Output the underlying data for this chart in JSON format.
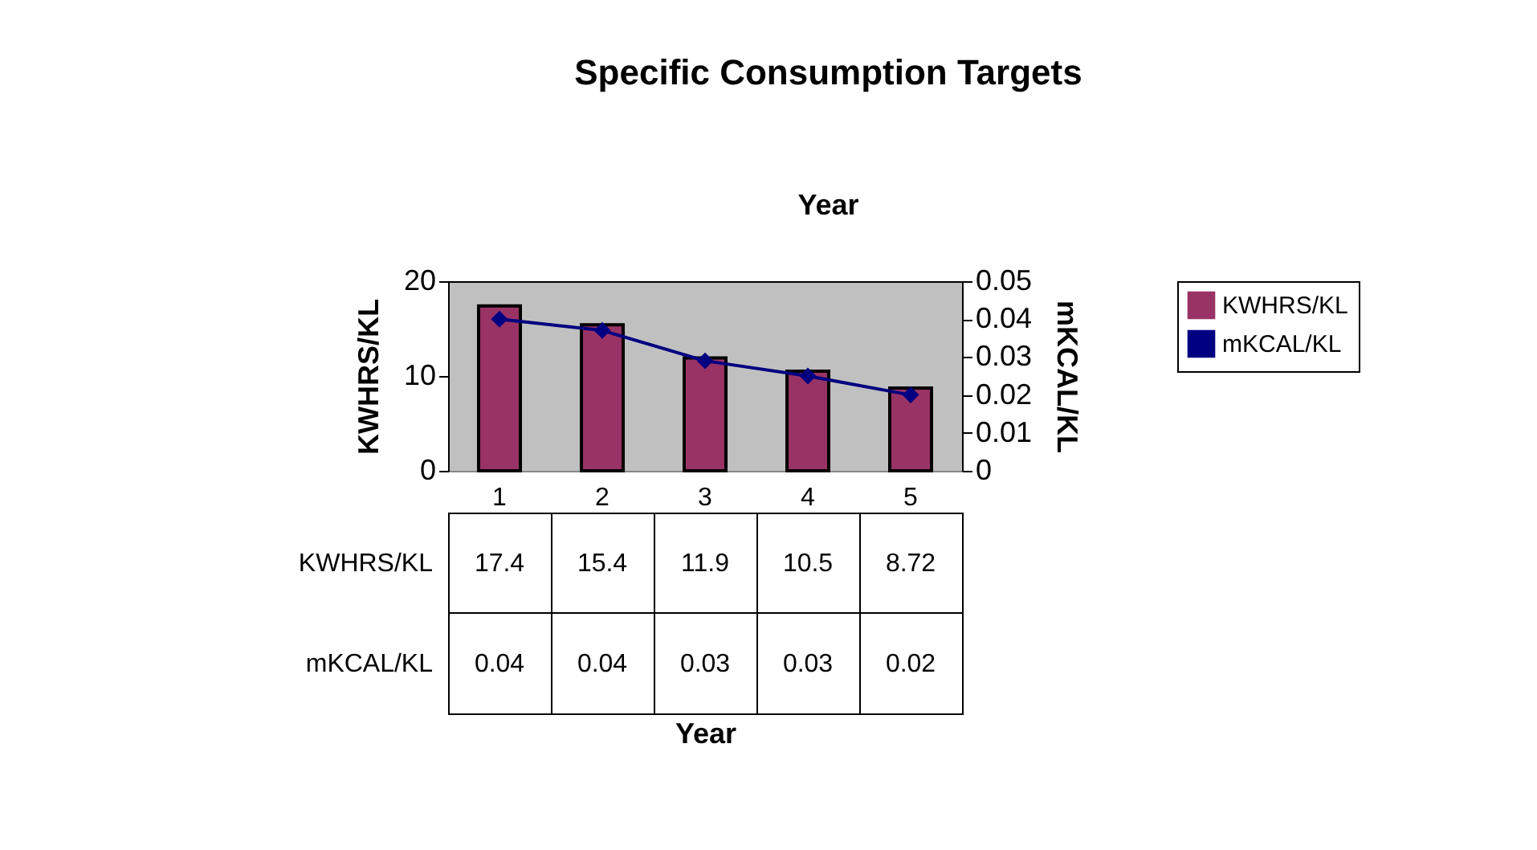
{
  "chart_data": {
    "type": "bar",
    "title": "Specific Consumption Targets",
    "subtitle": "Year",
    "annotations": [
      "Year"
    ],
    "ylabel": "KWHRS/KL",
    "y2label": "mKCAL/KL",
    "categories": [
      "1",
      "2",
      "3",
      "4",
      "5"
    ],
    "series": [
      {
        "name": "KWHRS/KL",
        "color": "#993366",
        "values": [
          17.4,
          15.4,
          11.9,
          10.5,
          8.72
        ],
        "value_labels": [
          "17.4",
          "15.4",
          "11.9",
          "10.5",
          "8.72"
        ]
      },
      {
        "name": "mKCAL/KL",
        "type": "line",
        "axis": "y2",
        "color": "#000080",
        "marker": "diamond",
        "values": [
          0.04,
          0.037,
          0.029,
          0.025,
          0.02
        ],
        "value_labels": [
          "0.04",
          "0.04",
          "0.03",
          "0.03",
          "0.02"
        ]
      }
    ],
    "ylim": [
      0,
      20
    ],
    "yticks": [
      0,
      10,
      20
    ],
    "y2lim": [
      0,
      0.05
    ],
    "y2ticks": [
      0,
      0.01,
      0.02,
      0.03,
      0.04,
      0.05
    ],
    "legend": "right"
  }
}
